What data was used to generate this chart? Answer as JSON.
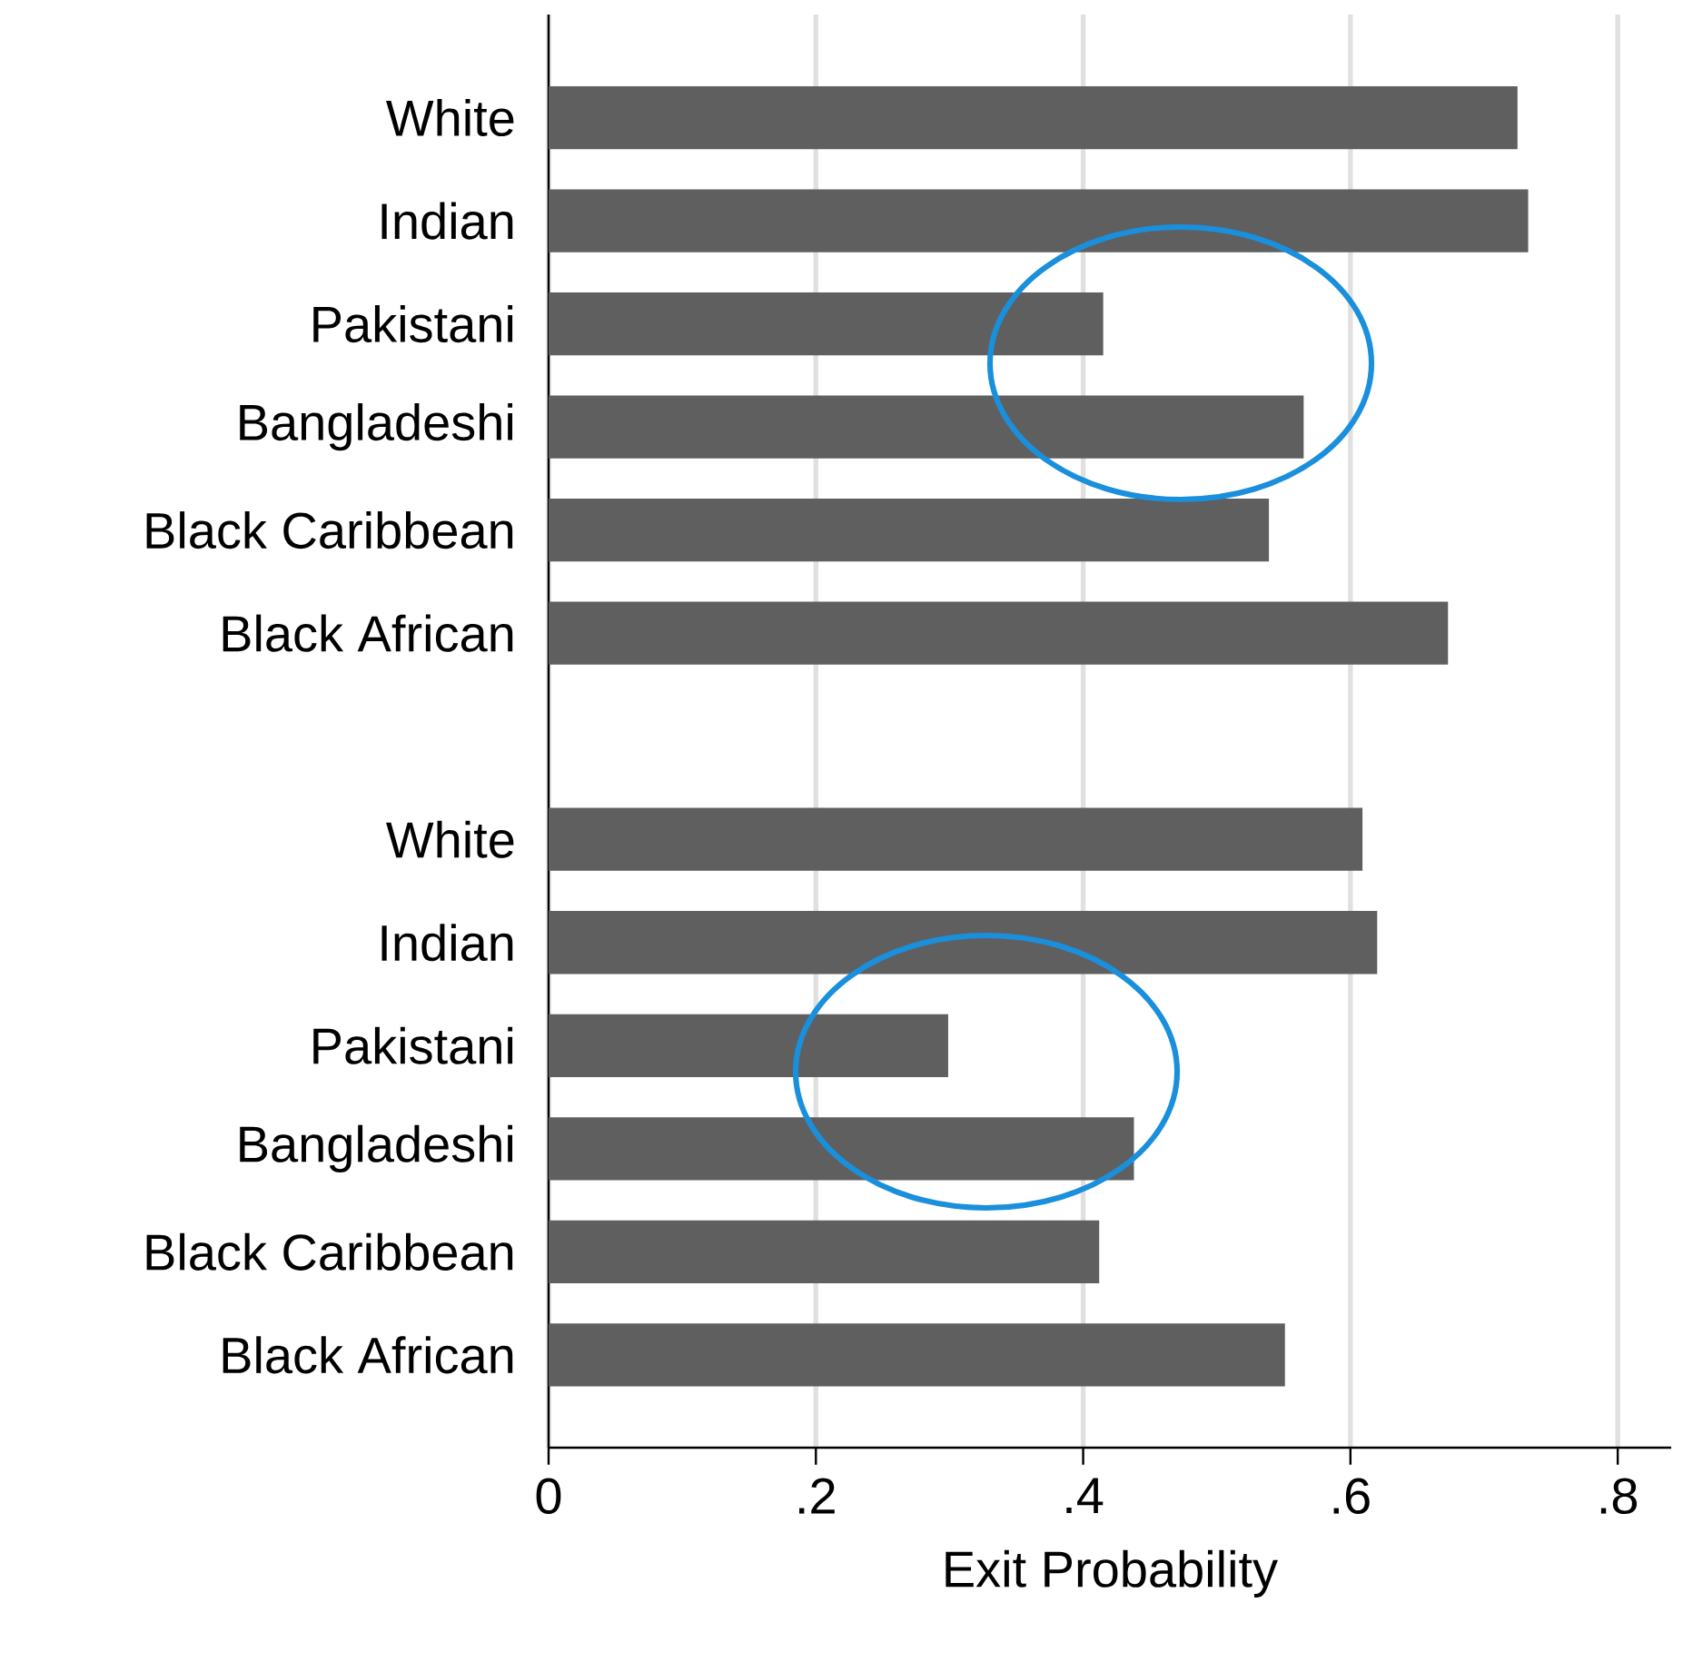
{
  "chart_data": {
    "type": "bar",
    "orientation": "horizontal",
    "xlabel": "Exit Probability",
    "categories": [
      "White",
      "Indian",
      "Pakistani",
      "Bangladeshi",
      "Black Caribbean",
      "Black African",
      null,
      "White",
      "Indian",
      "Pakistani",
      "Bangladeshi",
      "Black Caribbean",
      "Black African"
    ],
    "values": [
      0.725,
      0.733,
      0.415,
      0.565,
      0.539,
      0.673,
      null,
      0.609,
      0.62,
      0.299,
      0.438,
      0.412,
      0.551
    ],
    "color": "#5f5f5f",
    "xlim": [
      0,
      0.84
    ],
    "xticks": [
      0,
      {
        "value": 0.2,
        "label": ".2"
      },
      {
        "value": 0.4,
        "label": ".4"
      },
      {
        "value": 0.6,
        "label": ".6"
      },
      {
        "value": 0.8,
        "label": ".8"
      }
    ],
    "grid": "x"
  }
}
